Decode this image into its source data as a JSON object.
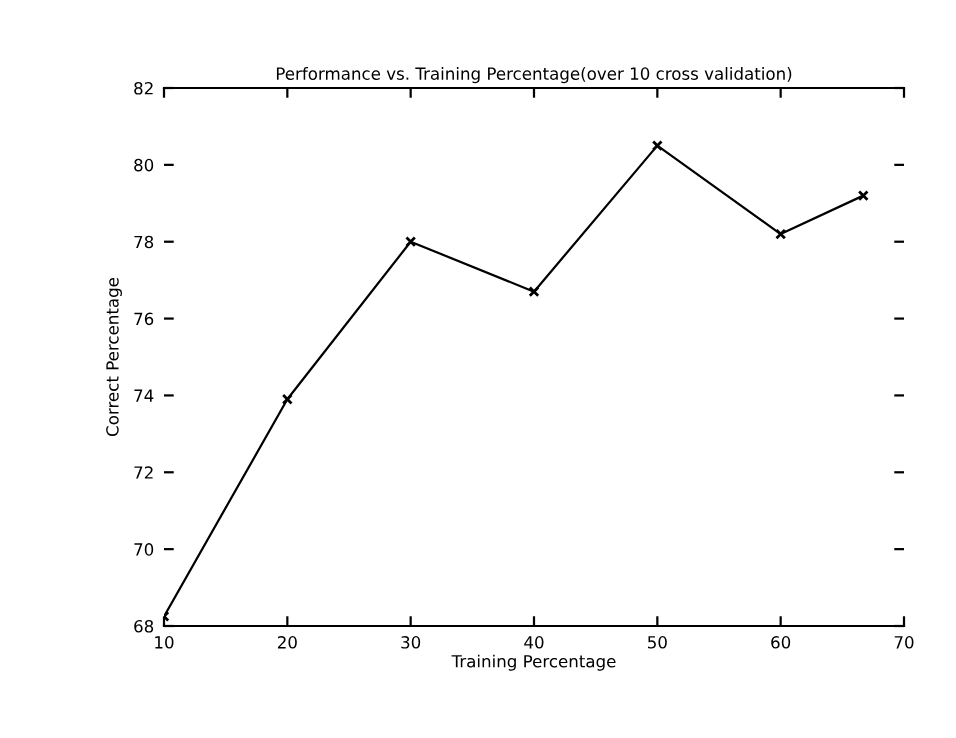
{
  "chart_data": {
    "type": "line",
    "title": "Performance vs. Training Percentage(over 10 cross validation)",
    "xlabel": "Training Percentage",
    "ylabel": "Correct Percentage",
    "x": [
      10,
      20,
      30,
      40,
      50,
      60,
      66.7
    ],
    "series": [
      {
        "color": "#000000",
        "values": [
          68.25,
          73.9,
          78.0,
          76.7,
          80.5,
          78.2,
          79.2
        ]
      }
    ],
    "xlim": [
      10,
      70
    ],
    "xticks": [
      10,
      20,
      30,
      40,
      50,
      60,
      70
    ],
    "ylim": [
      68,
      82
    ],
    "yticks": [
      68,
      70,
      72,
      74,
      76,
      78,
      80,
      82
    ],
    "grid": false,
    "legend": false,
    "marker": "cross",
    "line_style": "solid"
  }
}
